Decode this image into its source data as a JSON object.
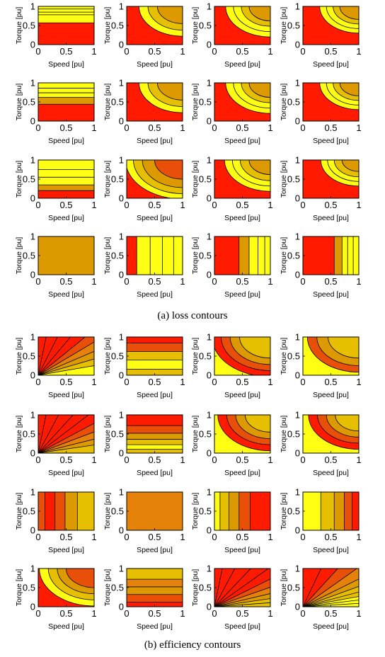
{
  "colors": {
    "red": "#ff1a00",
    "orange_red": "#e8500a",
    "dark_orange": "#e4820a",
    "orange": "#dd9a00",
    "gold": "#e6c000",
    "yellow": "#ffff14",
    "contour_line": "#000000"
  },
  "axis_labels": {
    "x": "Speed  [pu]",
    "y": "Torque  [pu]"
  },
  "tick_labels": {
    "x": [
      "0",
      "0.5",
      "1"
    ],
    "y": [
      "0",
      "0.5",
      "1"
    ]
  },
  "captions": {
    "loss": "(a) loss contours",
    "efficiency": "(b) efficiency contours"
  },
  "chart_data": {
    "type": "heatmap",
    "description_grid": "two groups of 4x4 filled contour subplots; axes Speed [pu] 0..1 and Torque [pu] 0..1",
    "xlim": [
      0,
      1
    ],
    "ylim": [
      0,
      1
    ],
    "groups": [
      {
        "caption": "(a) loss contours",
        "panels": [
          [
            {
              "kind": "h",
              "breaks": [
                0.57,
                0.78,
                0.85,
                0.93
              ],
              "palette": [
                "red",
                "yellow",
                "yellow",
                "yellow",
                "yellow"
              ]
            },
            {
              "kind": "corner",
              "radii": [
                0.45,
                0.62,
                0.78
              ],
              "palette": [
                "red",
                "orange",
                "gold",
                "yellow"
              ]
            },
            {
              "kind": "corner",
              "radii": [
                0.38,
                0.52,
                0.66,
                0.8
              ],
              "palette": [
                "red",
                "orange",
                "gold",
                "yellow",
                "yellow"
              ]
            },
            {
              "kind": "corner",
              "radii": [
                0.34,
                0.46,
                0.58,
                0.7
              ],
              "palette": [
                "red",
                "orange",
                "gold",
                "yellow",
                "yellow"
              ]
            }
          ],
          [
            {
              "kind": "h",
              "breaks": [
                0.44,
                0.62,
                0.74,
                0.86
              ],
              "palette": [
                "red",
                "orange",
                "yellow",
                "yellow",
                "yellow"
              ]
            },
            {
              "kind": "corner",
              "radii": [
                0.45,
                0.62,
                0.78
              ],
              "palette": [
                "red",
                "orange",
                "gold",
                "yellow"
              ]
            },
            {
              "kind": "corner",
              "radii": [
                0.38,
                0.52,
                0.66,
                0.8
              ],
              "palette": [
                "red",
                "orange",
                "gold",
                "yellow",
                "yellow"
              ]
            },
            {
              "kind": "corner",
              "radii": [
                0.34,
                0.46,
                0.58,
                0.7
              ],
              "palette": [
                "red",
                "orange",
                "gold",
                "yellow",
                "yellow"
              ]
            }
          ],
          [
            {
              "kind": "h",
              "breaks": [
                0.2,
                0.35,
                0.55,
                0.75
              ],
              "palette": [
                "red",
                "orange",
                "yellow",
                "yellow",
                "yellow"
              ]
            },
            {
              "kind": "corner",
              "radii": [
                0.5,
                0.72,
                0.88,
                1.02
              ],
              "palette": [
                "red",
                "orange_red",
                "orange",
                "gold",
                "yellow"
              ]
            },
            {
              "kind": "corner",
              "radii": [
                0.38,
                0.54,
                0.68,
                0.82
              ],
              "palette": [
                "red",
                "orange",
                "gold",
                "yellow",
                "yellow"
              ]
            },
            {
              "kind": "corner",
              "radii": [
                0.3,
                0.44,
                0.56,
                0.68
              ],
              "palette": [
                "red",
                "orange",
                "gold",
                "yellow",
                "yellow"
              ]
            }
          ],
          [
            {
              "kind": "solid",
              "palette": [
                "orange"
              ]
            },
            {
              "kind": "v",
              "breaks": [
                0.18,
                0.42,
                0.64,
                0.84
              ],
              "palette": [
                "red",
                "yellow",
                "yellow",
                "yellow",
                "yellow"
              ]
            },
            {
              "kind": "v",
              "breaks": [
                0.44,
                0.62,
                0.78,
                0.9
              ],
              "palette": [
                "red",
                "orange",
                "yellow",
                "yellow",
                "yellow"
              ]
            },
            {
              "kind": "v",
              "breaks": [
                0.56,
                0.7,
                0.8,
                0.9
              ],
              "palette": [
                "red",
                "orange",
                "yellow",
                "yellow",
                "yellow"
              ]
            }
          ]
        ]
      },
      {
        "caption": "(b) efficiency contours",
        "panels": [
          [
            {
              "kind": "ray",
              "angles": [
                14,
                23,
                32,
                41,
                50,
                60,
                71,
                82
              ],
              "palette": [
                "yellow",
                "gold",
                "orange",
                "dark_orange",
                "orange_red",
                "red",
                "red",
                "red",
                "red"
              ]
            },
            {
              "kind": "h",
              "breaks": [
                0.16,
                0.4,
                0.62,
                0.84
              ],
              "palette": [
                "gold",
                "yellow",
                "gold",
                "orange_red",
                "red"
              ]
            },
            {
              "kind": "corner",
              "radii": [
                0.55,
                0.72,
                0.88,
                1.04
              ],
              "palette": [
                "yellow",
                "gold",
                "orange",
                "orange_red",
                "red"
              ]
            },
            {
              "kind": "corner",
              "radii": [
                0.55,
                0.75,
                0.92
              ],
              "palette": [
                "yellow",
                "gold",
                "orange",
                "orange_red"
              ]
            }
          ],
          [
            {
              "kind": "ray",
              "angles": [
                12,
                20,
                29,
                38,
                48,
                58,
                70,
                82
              ],
              "palette": [
                "gold",
                "orange",
                "dark_orange",
                "orange_red",
                "red",
                "red",
                "red",
                "red",
                "red"
              ]
            },
            {
              "kind": "h",
              "breaks": [
                0.1,
                0.22,
                0.36,
                0.52,
                0.72
              ],
              "palette": [
                "gold",
                "yellow",
                "gold",
                "orange",
                "orange_red",
                "red"
              ]
            },
            {
              "kind": "corner",
              "radii": [
                0.45,
                0.62,
                0.78,
                0.94
              ],
              "palette": [
                "yellow",
                "gold",
                "orange",
                "orange_red",
                "red"
              ]
            },
            {
              "kind": "corner",
              "radii": [
                0.42,
                0.58,
                0.74,
                0.9
              ],
              "palette": [
                "yellow",
                "gold",
                "orange",
                "orange_red",
                "red"
              ]
            }
          ],
          [
            {
              "kind": "v",
              "breaks": [
                0.12,
                0.3,
                0.48,
                0.7
              ],
              "palette": [
                "orange_red",
                "red",
                "orange_red",
                "orange",
                "gold"
              ]
            },
            {
              "kind": "solid",
              "palette": [
                "dark_orange"
              ]
            },
            {
              "kind": "v",
              "breaks": [
                0.1,
                0.26,
                0.44,
                0.64
              ],
              "palette": [
                "yellow",
                "gold",
                "orange",
                "orange_red",
                "red"
              ]
            },
            {
              "kind": "v",
              "breaks": [
                0.32,
                0.56,
                0.74,
                0.88
              ],
              "palette": [
                "yellow",
                "gold",
                "orange",
                "orange_red",
                "red"
              ]
            }
          ],
          [
            {
              "kind": "corner_inv",
              "radii": [
                0.5,
                0.66,
                0.82,
                0.98
              ],
              "palette": [
                "red",
                "orange_red",
                "orange",
                "gold",
                "yellow"
              ]
            },
            {
              "kind": "h",
              "breaks": [
                0.12,
                0.32,
                0.52,
                0.72
              ],
              "palette": [
                "red",
                "orange_red",
                "orange",
                "dark_orange",
                "gold"
              ]
            },
            {
              "kind": "ray",
              "angles": [
                6,
                12,
                19,
                27,
                36,
                46,
                57,
                70,
                82
              ],
              "palette": [
                "gold",
                "gold",
                "orange",
                "dark_orange",
                "orange_red",
                "red",
                "red",
                "red",
                "red",
                "red"
              ]
            },
            {
              "kind": "ray",
              "angles": [
                5,
                10,
                15,
                21,
                28,
                36,
                46,
                58,
                72
              ],
              "palette": [
                "yellow",
                "yellow",
                "yellow",
                "gold",
                "gold",
                "orange",
                "dark_orange",
                "orange_red",
                "red",
                "red"
              ]
            }
          ]
        ]
      }
    ]
  }
}
